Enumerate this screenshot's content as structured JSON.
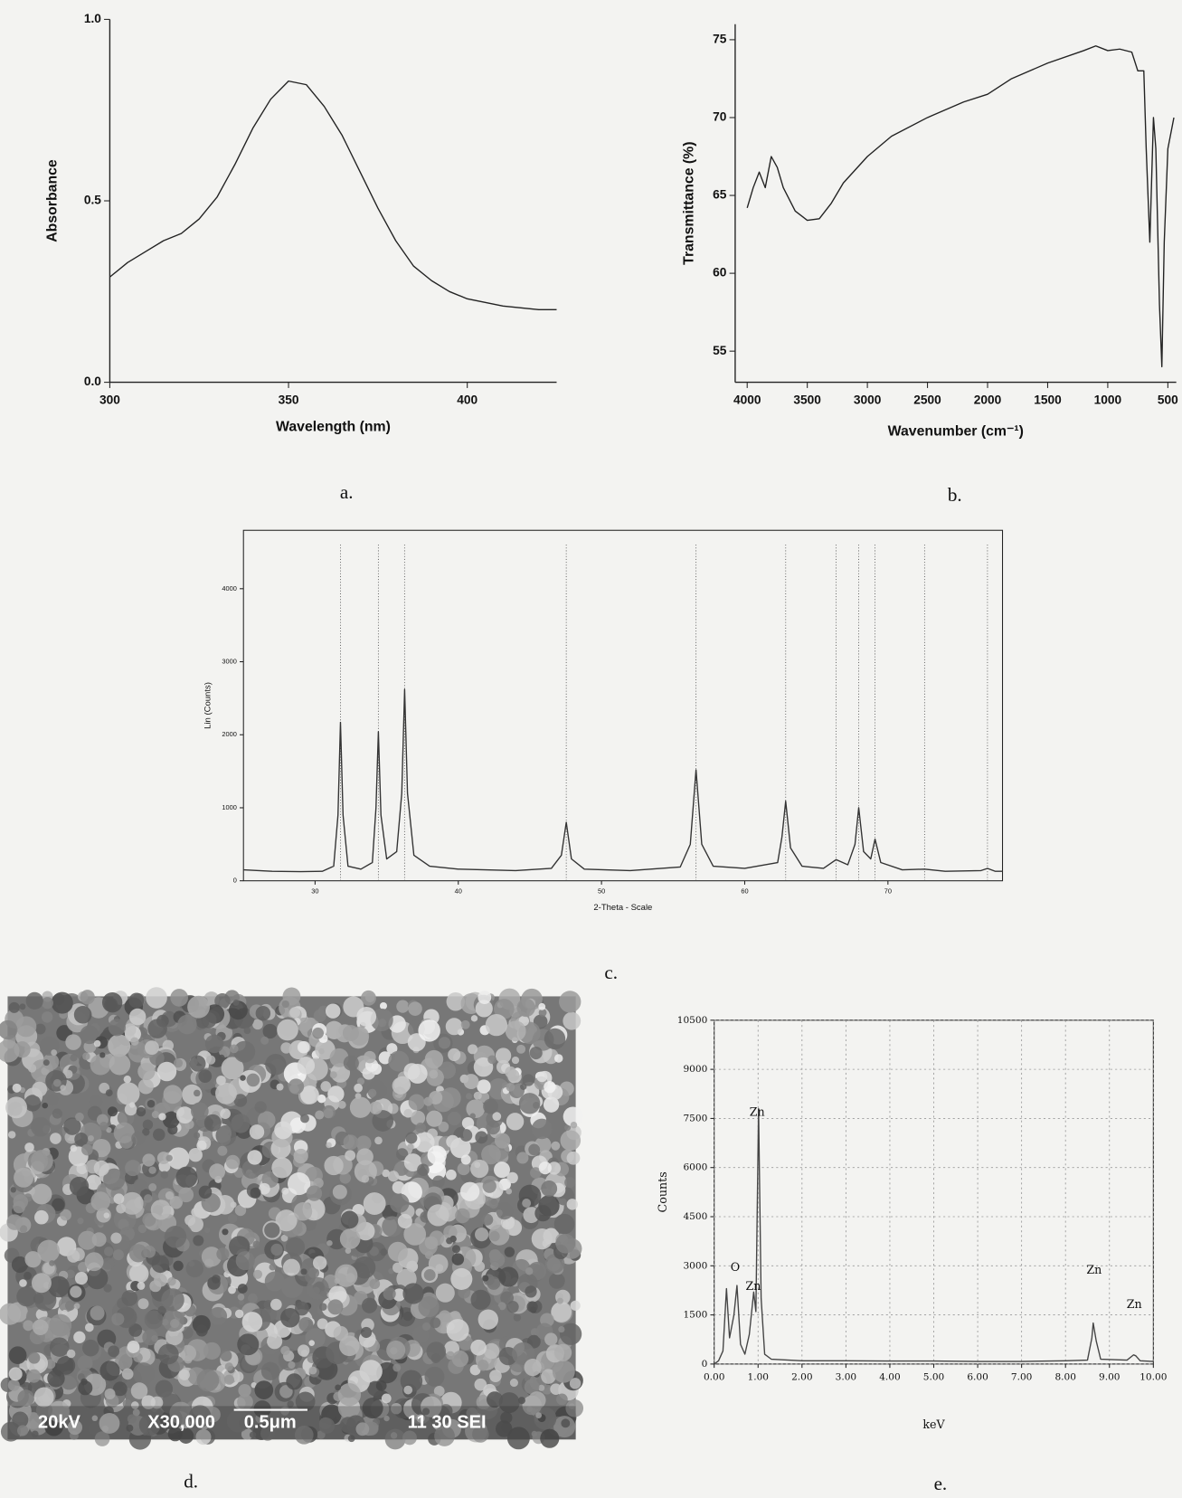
{
  "chart_data": [
    {
      "type": "line",
      "caption": "a.",
      "xlabel": "Wavelength (nm)",
      "ylabel": "Absorbance",
      "xlim": [
        300,
        425
      ],
      "ylim": [
        0,
        1
      ],
      "xticks": [
        300,
        350,
        400
      ],
      "yticks": [
        {
          "value": 0,
          "label": "0.0"
        },
        {
          "value": 0.5,
          "label": "0.5"
        },
        {
          "value": 1,
          "label": "1.0"
        }
      ],
      "color": "#222222",
      "x": [
        300,
        305,
        310,
        315,
        320,
        325,
        330,
        335,
        340,
        345,
        350,
        355,
        360,
        365,
        370,
        375,
        380,
        385,
        390,
        395,
        400,
        410,
        420,
        425
      ],
      "values": [
        0.29,
        0.33,
        0.36,
        0.39,
        0.41,
        0.45,
        0.51,
        0.6,
        0.7,
        0.78,
        0.83,
        0.82,
        0.76,
        0.68,
        0.58,
        0.48,
        0.39,
        0.32,
        0.28,
        0.25,
        0.23,
        0.21,
        0.2,
        0.2
      ]
    },
    {
      "type": "line",
      "caption": "b.",
      "xlabel": "Wavenumber (cm⁻¹)",
      "ylabel": "Transmittance (%)",
      "xlim": [
        4100,
        430
      ],
      "ylim": [
        53,
        76
      ],
      "xticks": [
        4000,
        3500,
        3000,
        2500,
        2000,
        1500,
        1000,
        500
      ],
      "yticks": [
        55,
        60,
        65,
        70,
        75
      ],
      "color": "#222222",
      "x": [
        4000,
        3950,
        3900,
        3850,
        3800,
        3750,
        3700,
        3600,
        3500,
        3400,
        3300,
        3200,
        3000,
        2800,
        2500,
        2200,
        2000,
        1800,
        1500,
        1200,
        1100,
        1000,
        900,
        800,
        750,
        700,
        680,
        650,
        620,
        600,
        570,
        550,
        530,
        500,
        450
      ],
      "values": [
        64.2,
        65.5,
        66.5,
        65.5,
        67.5,
        66.8,
        65.5,
        64,
        63.4,
        63.5,
        64.5,
        65.8,
        67.5,
        68.8,
        70,
        71,
        71.5,
        72.5,
        73.5,
        74.3,
        74.6,
        74.3,
        74.4,
        74.2,
        73,
        73,
        68,
        62,
        70,
        68,
        58,
        54,
        62,
        68,
        70
      ]
    },
    {
      "type": "line",
      "caption": "c.",
      "xlabel": "2-Theta - Scale",
      "ylabel": "Lin (Counts)",
      "frame": true,
      "xlim": [
        25,
        78
      ],
      "ylim": [
        0,
        4800
      ],
      "xticks": [
        30,
        40,
        50,
        60,
        70
      ],
      "yticks": [
        0,
        1000,
        2000,
        3000,
        4000
      ],
      "color": "#333333",
      "reference_lines": [
        31.77,
        34.42,
        36.25,
        47.54,
        56.6,
        62.86,
        66.38,
        67.96,
        69.1,
        72.56,
        76.95
      ],
      "x": [
        25,
        27,
        29,
        30.5,
        31.3,
        31.6,
        31.77,
        31.95,
        32.3,
        33.2,
        34.0,
        34.25,
        34.42,
        34.6,
        35.0,
        35.7,
        36.05,
        36.25,
        36.45,
        36.9,
        38,
        40,
        44,
        46.5,
        47.2,
        47.54,
        47.9,
        48.8,
        52,
        55.5,
        56.2,
        56.6,
        57.0,
        57.8,
        60,
        62.3,
        62.6,
        62.86,
        63.2,
        64,
        65.5,
        66.38,
        67.2,
        67.7,
        67.96,
        68.3,
        68.8,
        69.1,
        69.5,
        71,
        72.56,
        74,
        76.5,
        76.95,
        77.5,
        78
      ],
      "values": [
        150,
        130,
        125,
        130,
        200,
        900,
        2170,
        900,
        200,
        160,
        250,
        1000,
        2040,
        900,
        300,
        400,
        1200,
        2620,
        1200,
        350,
        200,
        160,
        140,
        170,
        350,
        800,
        300,
        160,
        140,
        190,
        500,
        1520,
        500,
        200,
        170,
        250,
        600,
        1090,
        450,
        200,
        170,
        290,
        220,
        500,
        1000,
        400,
        300,
        570,
        250,
        150,
        160,
        130,
        140,
        170,
        130,
        130
      ]
    },
    {
      "type": "line",
      "caption": "e.",
      "xlabel": "keV",
      "ylabel": "Counts",
      "frame": true,
      "grid": true,
      "xlim": [
        0,
        10
      ],
      "ylim": [
        0,
        10500
      ],
      "xticks": [
        {
          "value": 0,
          "label": "0.00"
        },
        {
          "value": 1,
          "label": "1.00"
        },
        {
          "value": 2,
          "label": "2.00"
        },
        {
          "value": 3,
          "label": "3.00"
        },
        {
          "value": 4,
          "label": "4.00"
        },
        {
          "value": 5,
          "label": "5.00"
        },
        {
          "value": 6,
          "label": "6.00"
        },
        {
          "value": 7,
          "label": "7.00"
        },
        {
          "value": 8,
          "label": "8.00"
        },
        {
          "value": 9,
          "label": "9.00"
        },
        {
          "value": 10,
          "label": "10.00"
        }
      ],
      "yticks": [
        0,
        1500,
        3000,
        4500,
        6000,
        7500,
        9000,
        10500
      ],
      "color": "#444444",
      "annotations": [
        "Zn",
        "O",
        "Zn",
        "Zn",
        "Zn"
      ],
      "x": [
        0,
        0.1,
        0.2,
        0.28,
        0.35,
        0.45,
        0.52,
        0.6,
        0.7,
        0.8,
        0.9,
        0.95,
        1.01,
        1.07,
        1.15,
        1.3,
        2,
        3,
        4,
        5,
        6,
        7,
        8,
        8.5,
        8.6,
        8.63,
        8.7,
        8.8,
        9.4,
        9.55,
        9.6,
        9.7,
        10
      ],
      "values": [
        0,
        100,
        400,
        2300,
        800,
        1500,
        2400,
        600,
        300,
        900,
        2200,
        1600,
        7800,
        2000,
        300,
        150,
        100,
        100,
        90,
        90,
        80,
        80,
        100,
        120,
        800,
        1250,
        700,
        150,
        120,
        280,
        250,
        100,
        80
      ]
    }
  ],
  "sem_image": {
    "caption": "d.",
    "labels": [
      "20kV",
      "X30,000",
      "0.5μm",
      "11 30 SEI"
    ]
  }
}
